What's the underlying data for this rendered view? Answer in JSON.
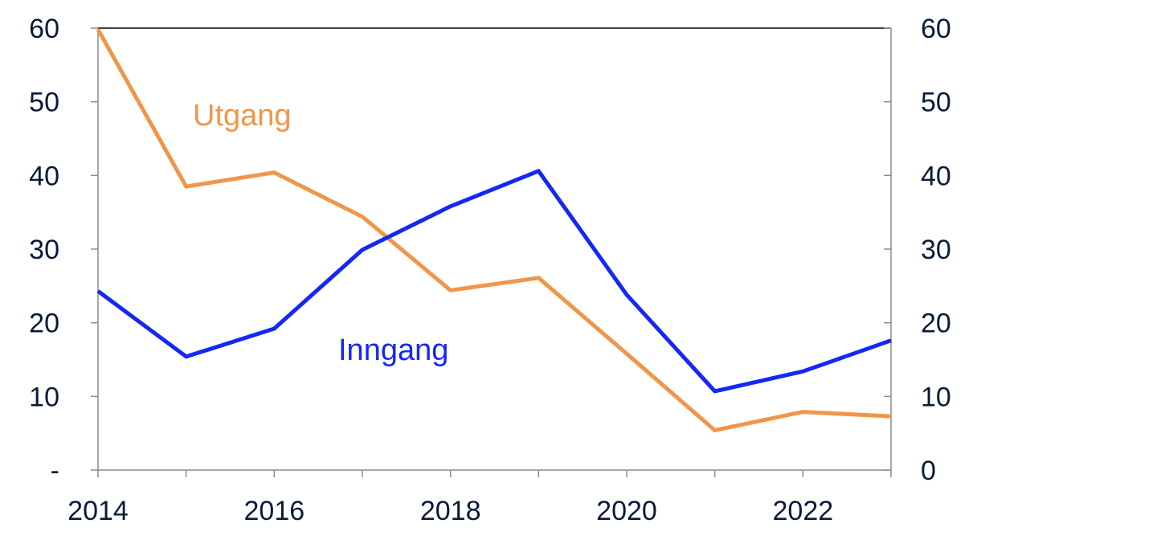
{
  "chart_data": {
    "type": "line",
    "x": [
      2014,
      2015,
      2016,
      2017,
      2018,
      2019,
      2020,
      2021,
      2022,
      2023
    ],
    "series": [
      {
        "name": "Utgang",
        "color": "#f0964a",
        "values": [
          59.8,
          38.5,
          40.4,
          34.4,
          24.4,
          26.1,
          15.8,
          5.4,
          7.9,
          7.3
        ]
      },
      {
        "name": "Inngang",
        "color": "#1428f5",
        "values": [
          24.3,
          15.4,
          19.2,
          29.9,
          35.8,
          40.6,
          23.8,
          10.7,
          13.4,
          17.6
        ]
      }
    ],
    "xlim": [
      2014,
      2023
    ],
    "ylim": [
      0,
      60
    ],
    "x_tick_labels": [
      "2014",
      "2016",
      "2018",
      "2020",
      "2022"
    ],
    "y_left_tick_labels": [
      "-",
      "10",
      "20",
      "30",
      "40",
      "50",
      "60"
    ],
    "y_right_tick_labels": [
      "0",
      "10",
      "20",
      "30",
      "40",
      "50",
      "60"
    ],
    "y_ticks": [
      0,
      10,
      20,
      30,
      40,
      50,
      60
    ],
    "grid": false,
    "legend": "inline labels"
  }
}
